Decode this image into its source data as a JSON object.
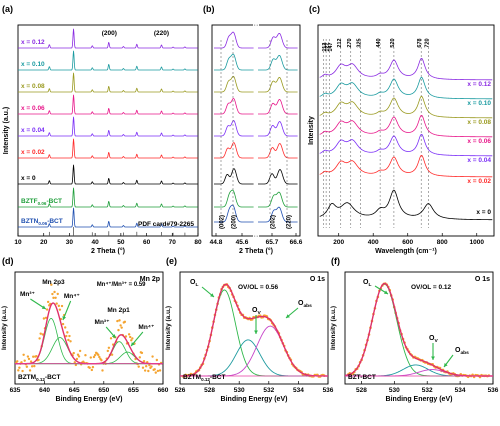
{
  "colors": {
    "x_0": "#000000",
    "x_002": "#ff2a2a",
    "x_004": "#7b2ff7",
    "x_006": "#e8178a",
    "x_008": "#9a9a20",
    "x_010": "#1a9ba0",
    "x_012": "#8a2be2",
    "bztf": "#1e9e3a",
    "bztn": "#1f4fb0",
    "pdf": "#555555",
    "exp_points": "#f4a431",
    "fit": "#e0306a",
    "comp_green": "#2fb84b",
    "comp_teal": "#1f9ba0",
    "comp_magenta": "#c745c9",
    "baseline": "#e63ea0"
  },
  "chart_data": [
    {
      "panel": "(a)",
      "type": "line",
      "xlabel": "2 Theta (°)",
      "ylabel": "Intensity (a.u.)",
      "xlim": [
        10,
        80
      ],
      "xticks": [
        10,
        20,
        30,
        40,
        50,
        60,
        70,
        80
      ],
      "peak_labels": [
        {
          "text": "(200)",
          "x": 45.5
        },
        {
          "text": "(220)",
          "x": 65.8
        }
      ],
      "peaks_2theta": [
        22.2,
        31.6,
        38.9,
        45.3,
        51.0,
        56.2,
        65.8,
        70.3,
        74.9
      ],
      "reference": "PDF card#79-2265",
      "series": [
        {
          "name": "x = 0.12",
          "color_key": "x_012"
        },
        {
          "name": "x = 0.10",
          "color_key": "x_010"
        },
        {
          "name": "x = 0.08",
          "color_key": "x_008"
        },
        {
          "name": "x = 0.06",
          "color_key": "x_006"
        },
        {
          "name": "x = 0.04",
          "color_key": "x_004"
        },
        {
          "name": "x = 0.02",
          "color_key": "x_002"
        },
        {
          "name": "x = 0",
          "color_key": "x_0"
        },
        {
          "name": "BZTF0.06-BCT",
          "label_main": "BZTF",
          "label_sub": "0.06",
          "label_tail": "-BCT",
          "color_key": "bztf"
        },
        {
          "name": "BZTN0.06-BCT",
          "label_main": "BZTN",
          "label_sub": "0.06",
          "label_tail": "-BCT",
          "color_key": "bztn"
        }
      ]
    },
    {
      "panel": "(b)",
      "type": "line",
      "xlabel": "2 Theta (°)",
      "xticks": [
        "44.8",
        "45.6",
        "65.7",
        "66.6"
      ],
      "peak_labels": [
        "(002)",
        "(200)",
        "(202)",
        "(220)"
      ]
    },
    {
      "panel": "(c)",
      "type": "line",
      "xlabel": "Wavelength (cm⁻¹)",
      "ylabel": "Intensity",
      "xlim": [
        80,
        1100
      ],
      "xticks": [
        200,
        400,
        600,
        800,
        1000
      ],
      "band_labels": [
        "112",
        "127",
        "147",
        "212",
        "270",
        "325",
        "440",
        "520",
        "678",
        "720"
      ],
      "band_positions": [
        112,
        127,
        147,
        212,
        270,
        325,
        440,
        520,
        678,
        720
      ],
      "series": [
        {
          "name": "x = 0.12",
          "color_key": "x_012"
        },
        {
          "name": "x = 0.10",
          "color_key": "x_010"
        },
        {
          "name": "x = 0.08",
          "color_key": "x_008"
        },
        {
          "name": "x = 0.06",
          "color_key": "x_006"
        },
        {
          "name": "x = 0.04",
          "color_key": "x_004"
        },
        {
          "name": "x = 0.02",
          "color_key": "x_002"
        },
        {
          "name": "x = 0",
          "color_key": "x_0"
        }
      ]
    },
    {
      "panel": "(d)",
      "type": "line",
      "title": "Mn 2p",
      "xlabel": "Binding Energy (eV)",
      "ylabel": "Intensity (a.u.)",
      "xlim": [
        635,
        660
      ],
      "xticks": [
        635,
        640,
        645,
        650,
        655,
        660
      ],
      "sample_main": "BZTM",
      "sample_sub": "0.12",
      "sample_tail": "-BCT",
      "ratio": "Mn⁴⁺/Mn³⁺ = 0.59",
      "annotations": [
        "Mn 2p3",
        "Mn³⁺",
        "Mn⁴⁺",
        "Mn 2p1",
        "Mn³⁺",
        "Mn⁴⁺"
      ],
      "fit_peaks_eV": [
        {
          "center": 641.1,
          "sigma": 1.1
        },
        {
          "center": 642.6,
          "sigma": 1.3
        },
        {
          "center": 652.6,
          "sigma": 1.1
        },
        {
          "center": 654.0,
          "sigma": 1.2
        }
      ]
    },
    {
      "panel": "(e)",
      "type": "line",
      "title": "O 1s",
      "xlabel": "Binding Energy (eV)",
      "ylabel": "Intensity (a.u.)",
      "xlim": [
        526,
        536
      ],
      "xticks": [
        526,
        528,
        530,
        532,
        534,
        536
      ],
      "sample_main": "BZTM",
      "sample_sub": "0.12",
      "sample_tail": "-BCT",
      "ratio": "OV/OL = 0.56",
      "annotations": [
        "OL",
        "OV",
        "Oabs"
      ],
      "components_eV": [
        {
          "center": 529.0,
          "height": 1.0,
          "width": 0.75
        },
        {
          "center": 530.6,
          "height": 0.42,
          "width": 0.8
        },
        {
          "center": 532.1,
          "height": 0.58,
          "width": 0.9
        }
      ]
    },
    {
      "panel": "(f)",
      "type": "line",
      "title": "O 1s",
      "xlabel": "Binding Energy (eV)",
      "ylabel": "Intensity (a.u.)",
      "xlim": [
        527,
        536
      ],
      "xticks": [
        528,
        530,
        532,
        534,
        536
      ],
      "sample": "BZT-BCT",
      "ratio": "OV/OL = 0.12",
      "annotations": [
        "OL",
        "OV",
        "Oabs"
      ],
      "components_eV": [
        {
          "center": 529.4,
          "height": 1.0,
          "width": 0.75
        },
        {
          "center": 531.3,
          "height": 0.12,
          "width": 0.75
        },
        {
          "center": 532.3,
          "height": 0.07,
          "width": 0.8
        }
      ]
    }
  ]
}
